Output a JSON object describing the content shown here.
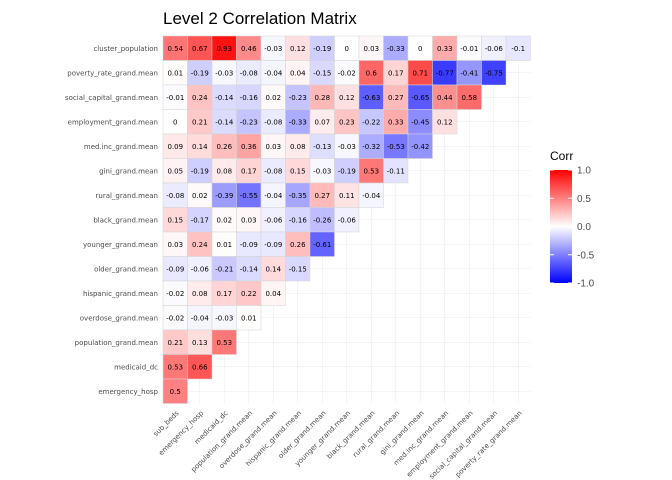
{
  "chart_data": {
    "type": "heatmap",
    "title": "Level 2 Correlation Matrix",
    "x_labels": [
      "sub_beds",
      "emergency_hosp",
      "medicaid_dc",
      "population_grand.mean",
      "overdose_grand.mean",
      "hispanic_grand.mean",
      "older_grand.mean",
      "younger_grand.mean",
      "black_grand.mean",
      "rural_grand.mean",
      "gini_grand.mean",
      "med.inc_grand.mean",
      "employment_grand.mean",
      "social_capital_grand.mean",
      "poverty_rate_grand.mean"
    ],
    "y_labels": [
      "cluster_population",
      "poverty_rate_grand.mean",
      "social_capital_grand.mean",
      "employment_grand.mean",
      "med.inc_grand.mean",
      "gini_grand.mean",
      "rural_grand.mean",
      "black_grand.mean",
      "younger_grand.mean",
      "older_grand.mean",
      "hispanic_grand.mean",
      "overdose_grand.mean",
      "population_grand.mean",
      "medicaid_dc",
      "emergency_hosp"
    ],
    "rows": [
      [
        "0.54",
        "0.67",
        "0.93",
        "0.46",
        "-0.03",
        "0.12",
        "-0.19",
        "0",
        "0.03",
        "-0.33",
        "0",
        "0.33",
        "-0.01",
        "-0.06",
        "-0.1"
      ],
      [
        "0.01",
        "-0.19",
        "-0.03",
        "-0.08",
        "-0.04",
        "0.04",
        "-0.15",
        "-0.02",
        "0.6",
        "0.17",
        "0.71",
        "-0.77",
        "-0.41",
        "-0.75"
      ],
      [
        "-0.01",
        "0.24",
        "-0.14",
        "-0.16",
        "0.02",
        "-0.23",
        "0.28",
        "0.12",
        "-0.63",
        "0.27",
        "-0.65",
        "0.44",
        "0.58"
      ],
      [
        "0",
        "0.21",
        "-0.14",
        "-0.23",
        "-0.08",
        "-0.33",
        "0.07",
        "0.23",
        "-0.22",
        "0.33",
        "-0.45",
        "0.12"
      ],
      [
        "0.09",
        "0.14",
        "0.26",
        "0.36",
        "0.03",
        "0.08",
        "-0.13",
        "-0.03",
        "-0.32",
        "-0.53",
        "-0.42"
      ],
      [
        "0.05",
        "-0.19",
        "0.08",
        "0.17",
        "-0.08",
        "0.15",
        "-0.03",
        "-0.19",
        "0.53",
        "-0.11"
      ],
      [
        "-0.08",
        "0.02",
        "-0.39",
        "-0.55",
        "-0.04",
        "-0.35",
        "0.27",
        "0.11",
        "-0.04"
      ],
      [
        "0.15",
        "-0.17",
        "0.02",
        "0.03",
        "-0.06",
        "-0.16",
        "-0.26",
        "-0.06"
      ],
      [
        "0.03",
        "0.24",
        "0.01",
        "-0.09",
        "-0.09",
        "0.26",
        "-0.61"
      ],
      [
        "-0.09",
        "-0.06",
        "-0.21",
        "-0.14",
        "0.14",
        "-0.15"
      ],
      [
        "-0.02",
        "0.08",
        "0.17",
        "0.22",
        "0.04"
      ],
      [
        "-0.02",
        "-0.04",
        "-0.03",
        "0.01"
      ],
      [
        "0.21",
        "0.13",
        "0.53"
      ],
      [
        "0.53",
        "0.66"
      ],
      [
        "0.5"
      ]
    ],
    "legend": {
      "title": "Corr",
      "ticks": [
        "1.0",
        "0.5",
        "0.0",
        "-0.5",
        "-1.0"
      ],
      "tick_values": [
        1,
        0.5,
        0,
        -0.5,
        -1
      ],
      "range": [
        -1,
        1
      ],
      "low_color": "#0000ff",
      "mid_color": "#ffffff",
      "high_color": "#ff0000",
      "placement": "right"
    },
    "grid": true
  }
}
